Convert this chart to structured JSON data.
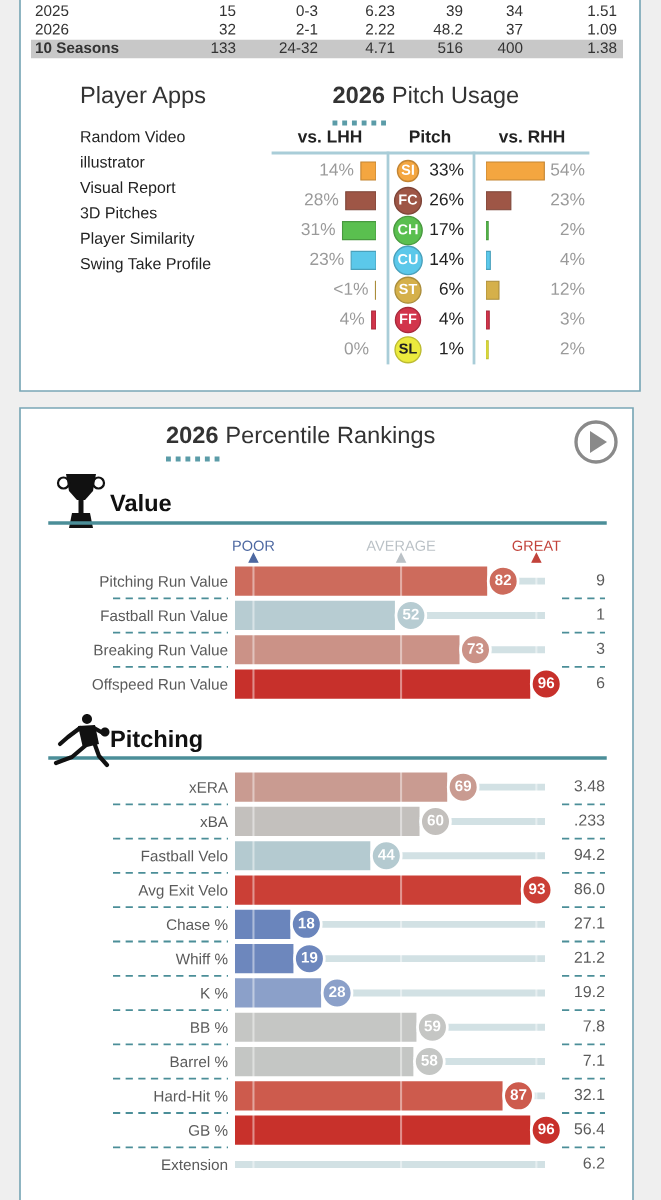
{
  "chart_data": [
    {
      "type": "other",
      "y_categories": [
        "2025",
        "2026",
        "10 Seasons"
      ],
      "cell_labels": [
        [
          "15",
          "0-3",
          "6.23",
          "39",
          "34",
          "1.51"
        ],
        [
          "32",
          "2-1",
          "2.22",
          "48.2",
          "37",
          "1.09"
        ],
        [
          "133",
          "24-32",
          "4.71",
          "516",
          "400",
          "1.38"
        ]
      ]
    },
    {
      "type": "other",
      "title": "Player Apps",
      "annotations": [
        "Random Video",
        "illustrator",
        "Visual Report",
        "3D Pitches",
        "Player Similarity",
        "Swing Take Profile"
      ]
    },
    {
      "type": "bar",
      "orientation": "horizontal",
      "title": "2026 Pitch Usage",
      "subtitle": "vs. LHH",
      "categories": [
        null,
        null,
        null,
        null,
        null,
        null,
        null
      ],
      "colors": [
        "#f4a640",
        "#9e5646",
        "#5abf4f",
        "#5bc8ea",
        "#d5b04a",
        "#d2354b",
        "#ebea3d"
      ],
      "values": [
        14,
        28,
        31,
        23,
        0.5,
        4,
        0
      ],
      "value_labels": [
        "14%",
        "28%",
        "31%",
        "23%",
        "<1%",
        "4%",
        "0%"
      ],
      "tick_labels": false
    },
    {
      "type": "other",
      "title": "Pitch",
      "y_categories": [
        "SI",
        "FC",
        "CH",
        "CU",
        "ST",
        "FF",
        "SL"
      ],
      "colors": [
        "#f4a640",
        "#9e5646",
        "#5abf4f",
        "#5bc8ea",
        "#d5b04a",
        "#d2354b",
        "#ebea3d"
      ],
      "cell_labels": [
        [
          "33%"
        ],
        [
          "26%"
        ],
        [
          "17%"
        ],
        [
          "14%"
        ],
        [
          "6%"
        ],
        [
          "4%"
        ],
        [
          "1%"
        ]
      ]
    },
    {
      "type": "bar",
      "orientation": "horizontal",
      "title": "vs. RHH",
      "categories": [
        null,
        null,
        null,
        null,
        null,
        null,
        null
      ],
      "colors": [
        "#f4a640",
        "#9e5646",
        "#5abf4f",
        "#5bc8ea",
        "#d5b04a",
        "#d2354b",
        "#ebea3d"
      ],
      "values": [
        54,
        23,
        2,
        4,
        12,
        3,
        2
      ],
      "value_labels": [
        "54%",
        "23%",
        "2%",
        "4%",
        "12%",
        "3%",
        "2%"
      ],
      "tick_labels": false
    },
    {
      "type": "bar",
      "orientation": "horizontal",
      "title": "2026 Percentile Rankings",
      "subtitle": "Value",
      "categories": [
        "Pitching Run Value",
        "Fastball Run Value",
        "Breaking Run Value",
        "Offspeed Run Value"
      ],
      "values": [
        82,
        52,
        73,
        96
      ],
      "colors": [
        "#cd6b5c",
        "#b7ccd2",
        "#cb9287",
        "#c7302b"
      ],
      "y2_categories": [
        "9",
        "1",
        "3",
        "6"
      ],
      "data_labels": true,
      "grid": "y",
      "tick_labels": "y",
      "ref_lines": [
        {
          "axis": "x",
          "value": 6,
          "label": "POOR",
          "color": "#ffffff"
        },
        {
          "axis": "x",
          "value": 54,
          "label": "AVERAGE",
          "color": "#ffffff"
        },
        {
          "axis": "x",
          "value": 98,
          "label": "GREAT",
          "color": "#ffffff"
        }
      ]
    },
    {
      "type": "bar",
      "orientation": "horizontal",
      "title": "Pitching",
      "categories": [
        "xERA",
        "xBA",
        "Fastball Velo",
        "Avg Exit Velo",
        "Chase %",
        "Whiff %",
        "K %",
        "BB %",
        "Barrel %",
        "Hard-Hit %",
        "GB %",
        "Extension"
      ],
      "values": [
        69,
        60,
        44,
        93,
        18,
        19,
        28,
        59,
        58,
        87,
        96,
        null
      ],
      "colors": [
        "#c99b91",
        "#c3c0bd",
        "#b4cad0",
        "#cb3f36",
        "#6a85bc",
        "#6d87bd",
        "#8ba0c9",
        "#c5c6c4",
        "#c4c6c4",
        "#cd5b4d",
        "#c8312b",
        "#8a9dc8"
      ],
      "y2_categories": [
        "3.48",
        ".233",
        "94.2",
        "86.0",
        "27.1",
        "21.2",
        "19.2",
        "7.8",
        "7.1",
        "32.1",
        "56.4",
        "6.2"
      ],
      "data_labels": true,
      "grid": "y",
      "tick_labels": "y",
      "ref_lines": [
        {
          "axis": "x",
          "value": 6,
          "color": "#ffffff"
        },
        {
          "axis": "x",
          "value": 54,
          "color": "#ffffff"
        },
        {
          "axis": "x",
          "value": 98,
          "color": "#ffffff"
        }
      ]
    }
  ]
}
